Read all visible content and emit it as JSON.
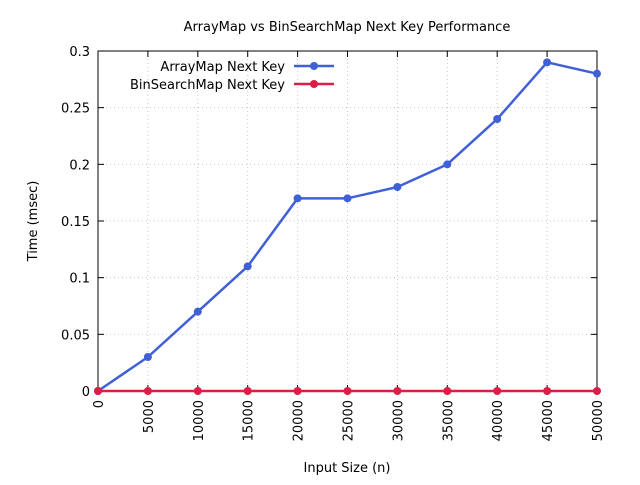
{
  "chart_data": {
    "type": "line",
    "title": "ArrayMap vs BinSearchMap Next Key Performance",
    "xlabel": "Input Size (n)",
    "ylabel": "Time (msec)",
    "xlim": [
      0,
      50000
    ],
    "ylim": [
      0,
      0.3
    ],
    "x": [
      0,
      5000,
      10000,
      15000,
      20000,
      25000,
      30000,
      35000,
      40000,
      45000,
      50000
    ],
    "x_tick_labels": [
      "0",
      "5000",
      "10000",
      "15000",
      "20000",
      "25000",
      "30000",
      "35000",
      "40000",
      "45000",
      "50000"
    ],
    "y_ticks": [
      0,
      0.05,
      0.1,
      0.15,
      0.2,
      0.25,
      0.3
    ],
    "y_tick_labels": [
      "0",
      "0.05",
      "0.1",
      "0.15",
      "0.2",
      "0.25",
      "0.3"
    ],
    "grid": true,
    "legend_position": "top-left",
    "series": [
      {
        "name": "ArrayMap Next Key",
        "color": "#4060d8",
        "values": [
          0,
          0.03,
          0.07,
          0.11,
          0.17,
          0.17,
          0.18,
          0.2,
          0.24,
          0.29,
          0.28
        ]
      },
      {
        "name": "BinSearchMap Next Key",
        "color": "#dc1e46",
        "values": [
          0,
          0,
          0,
          0,
          0,
          0,
          0,
          0,
          0,
          0,
          0
        ]
      }
    ]
  }
}
